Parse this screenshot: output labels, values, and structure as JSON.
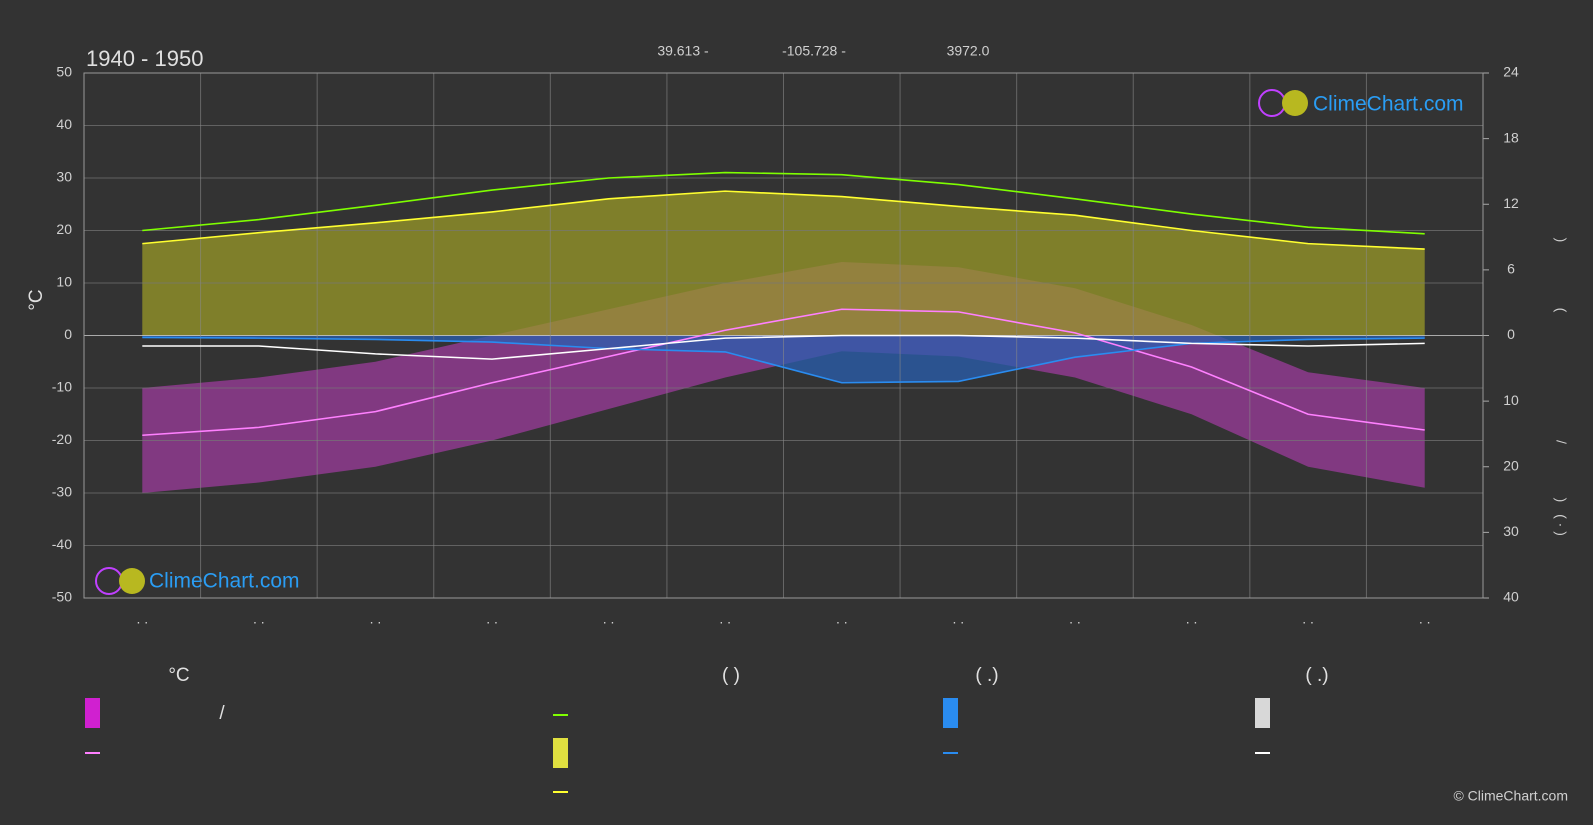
{
  "chart_data": {
    "type": "line",
    "title": "1940 - 1950",
    "subtitle": [
      "39.613 -",
      "-105.728 -",
      "3972.0"
    ],
    "y_label": "°C",
    "y2_labels": [
      ")",
      "(",
      "/",
      ")",
      "( · )"
    ],
    "watermark": "ClimeChart.com",
    "copyright": "© ClimeChart.com",
    "categories": [
      ". .",
      ". .",
      ". .",
      ". .",
      ". .",
      ". .",
      ". .",
      ". .",
      ". .",
      ". .",
      ". .",
      ". ."
    ],
    "ylim": [
      -50,
      50
    ],
    "yticks": [
      50,
      40,
      30,
      20,
      10,
      0,
      -10,
      -20,
      -30,
      -40,
      -50
    ],
    "y2lim": [
      -24,
      24
    ],
    "y2ticks": [
      24,
      18,
      12,
      6,
      0
    ],
    "y3lim": [
      40,
      -40
    ],
    "y3ticks": [
      10,
      20,
      30,
      40
    ],
    "grid": true,
    "bands": [
      {
        "color": "#e040e0",
        "high": [
          -10,
          -8,
          -5,
          0,
          5,
          10,
          14,
          13,
          9,
          2,
          -7,
          -10
        ],
        "low": [
          -30,
          -28,
          -25,
          -20,
          -14,
          -8,
          -3,
          -4,
          -8,
          -15,
          -25,
          -29
        ]
      }
    ],
    "series": [
      {
        "color": "#7fff00",
        "axis": "y2",
        "values": [
          9.6,
          10.6,
          11.9,
          13.3,
          14.4,
          14.9,
          14.7,
          13.8,
          12.5,
          11.1,
          9.9,
          9.3
        ]
      },
      {
        "color": "#ffff30",
        "axis": "y2",
        "fill": "#9a9a28",
        "values": [
          8.4,
          9.4,
          10.3,
          11.3,
          12.5,
          13.2,
          12.7,
          11.8,
          11.0,
          9.6,
          8.4,
          7.9
        ]
      },
      {
        "color": "#ff80ff",
        "values": [
          -19,
          -17.5,
          -14.5,
          -9,
          -4,
          1,
          5,
          4.5,
          0.5,
          -6,
          -15,
          -18
        ]
      },
      {
        "color": "#2a8cf0",
        "axis": "y3",
        "fill": "#2a5fb0",
        "values": [
          0.3,
          0.4,
          0.6,
          1.0,
          2.0,
          2.5,
          7.2,
          7.0,
          3.3,
          1.2,
          0.6,
          0.4
        ]
      },
      {
        "color": "#ffffff",
        "axis": "y3",
        "values": [
          1.6,
          1.6,
          2.8,
          3.6,
          2.0,
          0.4,
          0,
          0,
          0.4,
          1.2,
          1.6,
          1.2
        ]
      }
    ],
    "legend": {
      "headers": [
        "°C",
        "(           )",
        "(   .)",
        "(   .)"
      ],
      "note": "/"
    }
  }
}
